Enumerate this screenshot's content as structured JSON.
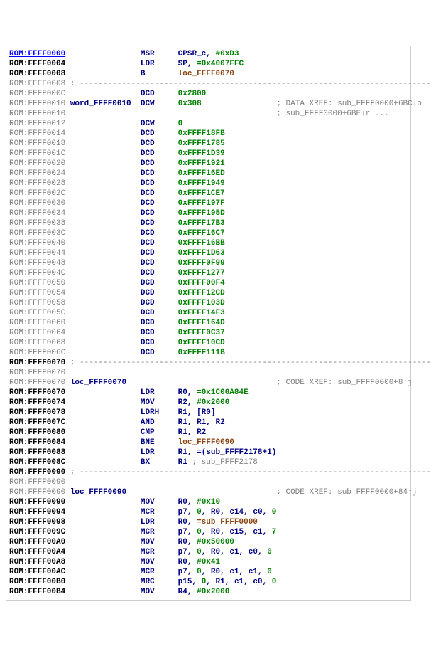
{
  "colors": {
    "background": "#ffffff",
    "addr_active": "#000000",
    "addr_dim": "#808080",
    "addr_link": "#0000ff",
    "keyword": "#000080",
    "number": "#008000",
    "label": "#8b4513",
    "comment": "#808080",
    "separator": "#808080"
  },
  "fontsize": 11,
  "font_family": "Courier New, monospace",
  "seg": "ROM",
  "separator_line": "; ---------------------------------------------------------------------------",
  "lines": [
    {
      "addr": "FFFF0000",
      "style": "blue",
      "mnem": "MSR",
      "ops": [
        {
          "t": "reg",
          "v": "CPSR_c"
        },
        {
          "t": "imm",
          "v": "#0xD3"
        }
      ]
    },
    {
      "addr": "FFFF0004",
      "style": "bold",
      "mnem": "LDR",
      "ops": [
        {
          "t": "reg",
          "v": "SP"
        },
        {
          "t": "imm",
          "v": "=0x4007FFC"
        }
      ]
    },
    {
      "addr": "FFFF0008",
      "style": "bold",
      "mnem": "B",
      "ops": [
        {
          "t": "lbl",
          "v": "loc_FFFF0070"
        }
      ]
    },
    {
      "addr": "FFFF0008",
      "style": "dim",
      "sep": true
    },
    {
      "addr": "FFFF000C",
      "style": "dim",
      "mnem": "DCD",
      "ops": [
        {
          "t": "imm",
          "v": "0x2800"
        }
      ]
    },
    {
      "addr": "FFFF0010",
      "style": "dim",
      "label": "word_FFFF0010",
      "mnem": "DCW",
      "ops": [
        {
          "t": "imm",
          "v": "0x308"
        }
      ],
      "xref": "; DATA XREF: sub_FFFF0000+6BC↓o"
    },
    {
      "addr": "FFFF0010",
      "style": "dim",
      "xref_only": "; sub_FFFF0000+6BE↓r ..."
    },
    {
      "addr": "FFFF0012",
      "style": "dim",
      "mnem": "DCW",
      "ops": [
        {
          "t": "imm",
          "v": "0"
        }
      ]
    },
    {
      "addr": "FFFF0014",
      "style": "dim",
      "mnem": "DCD",
      "ops": [
        {
          "t": "imm",
          "v": "0xFFFF18FB"
        }
      ]
    },
    {
      "addr": "FFFF0018",
      "style": "dim",
      "mnem": "DCD",
      "ops": [
        {
          "t": "imm",
          "v": "0xFFFF1785"
        }
      ]
    },
    {
      "addr": "FFFF001C",
      "style": "dim",
      "mnem": "DCD",
      "ops": [
        {
          "t": "imm",
          "v": "0xFFFF1D39"
        }
      ]
    },
    {
      "addr": "FFFF0020",
      "style": "dim",
      "mnem": "DCD",
      "ops": [
        {
          "t": "imm",
          "v": "0xFFFF1921"
        }
      ]
    },
    {
      "addr": "FFFF0024",
      "style": "dim",
      "mnem": "DCD",
      "ops": [
        {
          "t": "imm",
          "v": "0xFFFF16ED"
        }
      ]
    },
    {
      "addr": "FFFF0028",
      "style": "dim",
      "mnem": "DCD",
      "ops": [
        {
          "t": "imm",
          "v": "0xFFFF1949"
        }
      ]
    },
    {
      "addr": "FFFF002C",
      "style": "dim",
      "mnem": "DCD",
      "ops": [
        {
          "t": "imm",
          "v": "0xFFFF1CE7"
        }
      ]
    },
    {
      "addr": "FFFF0030",
      "style": "dim",
      "mnem": "DCD",
      "ops": [
        {
          "t": "imm",
          "v": "0xFFFF197F"
        }
      ]
    },
    {
      "addr": "FFFF0034",
      "style": "dim",
      "mnem": "DCD",
      "ops": [
        {
          "t": "imm",
          "v": "0xFFFF195D"
        }
      ]
    },
    {
      "addr": "FFFF0038",
      "style": "dim",
      "mnem": "DCD",
      "ops": [
        {
          "t": "imm",
          "v": "0xFFFF17B3"
        }
      ]
    },
    {
      "addr": "FFFF003C",
      "style": "dim",
      "mnem": "DCD",
      "ops": [
        {
          "t": "imm",
          "v": "0xFFFF16C7"
        }
      ]
    },
    {
      "addr": "FFFF0040",
      "style": "dim",
      "mnem": "DCD",
      "ops": [
        {
          "t": "imm",
          "v": "0xFFFF16BB"
        }
      ]
    },
    {
      "addr": "FFFF0044",
      "style": "dim",
      "mnem": "DCD",
      "ops": [
        {
          "t": "imm",
          "v": "0xFFFF1D63"
        }
      ]
    },
    {
      "addr": "FFFF0048",
      "style": "dim",
      "mnem": "DCD",
      "ops": [
        {
          "t": "imm",
          "v": "0xFFFF0F99"
        }
      ]
    },
    {
      "addr": "FFFF004C",
      "style": "dim",
      "mnem": "DCD",
      "ops": [
        {
          "t": "imm",
          "v": "0xFFFF1277"
        }
      ]
    },
    {
      "addr": "FFFF0050",
      "style": "dim",
      "mnem": "DCD",
      "ops": [
        {
          "t": "imm",
          "v": "0xFFFF00F4"
        }
      ]
    },
    {
      "addr": "FFFF0054",
      "style": "dim",
      "mnem": "DCD",
      "ops": [
        {
          "t": "imm",
          "v": "0xFFFF12CD"
        }
      ]
    },
    {
      "addr": "FFFF0058",
      "style": "dim",
      "mnem": "DCD",
      "ops": [
        {
          "t": "imm",
          "v": "0xFFFF103D"
        }
      ]
    },
    {
      "addr": "FFFF005C",
      "style": "dim",
      "mnem": "DCD",
      "ops": [
        {
          "t": "imm",
          "v": "0xFFFF14F3"
        }
      ]
    },
    {
      "addr": "FFFF0060",
      "style": "dim",
      "mnem": "DCD",
      "ops": [
        {
          "t": "imm",
          "v": "0xFFFF164D"
        }
      ]
    },
    {
      "addr": "FFFF0064",
      "style": "dim",
      "mnem": "DCD",
      "ops": [
        {
          "t": "imm",
          "v": "0xFFFF0C37"
        }
      ]
    },
    {
      "addr": "FFFF0068",
      "style": "dim",
      "mnem": "DCD",
      "ops": [
        {
          "t": "imm",
          "v": "0xFFFF10CD"
        }
      ]
    },
    {
      "addr": "FFFF006C",
      "style": "dim",
      "mnem": "DCD",
      "ops": [
        {
          "t": "imm",
          "v": "0xFFFF111B"
        }
      ]
    },
    {
      "addr": "FFFF0070",
      "style": "bold",
      "sep": true
    },
    {
      "addr": "FFFF0070",
      "style": "dim",
      "blank": true
    },
    {
      "addr": "FFFF0070",
      "style": "dim",
      "label": "loc_FFFF0070",
      "xref": "; CODE XREF: sub_FFFF0000+8↑j"
    },
    {
      "addr": "FFFF0070",
      "style": "bold",
      "mnem": "LDR",
      "ops": [
        {
          "t": "reg",
          "v": "R0"
        },
        {
          "t": "imm",
          "v": "=0x1C00A84E"
        }
      ]
    },
    {
      "addr": "FFFF0074",
      "style": "bold",
      "mnem": "MOV",
      "ops": [
        {
          "t": "reg",
          "v": "R2"
        },
        {
          "t": "imm",
          "v": "#0x2000"
        }
      ]
    },
    {
      "addr": "FFFF0078",
      "style": "bold",
      "mnem": "LDRH",
      "ops": [
        {
          "t": "reg",
          "v": "R1"
        },
        {
          "t": "mem",
          "v": "[R0]"
        }
      ]
    },
    {
      "addr": "FFFF007C",
      "style": "bold",
      "mnem": "AND",
      "ops": [
        {
          "t": "reg",
          "v": "R1"
        },
        {
          "t": "reg",
          "v": "R1"
        },
        {
          "t": "reg",
          "v": "R2"
        }
      ]
    },
    {
      "addr": "FFFF0080",
      "style": "bold",
      "mnem": "CMP",
      "ops": [
        {
          "t": "reg",
          "v": "R1"
        },
        {
          "t": "reg",
          "v": "R2"
        }
      ]
    },
    {
      "addr": "FFFF0084",
      "style": "bold",
      "mnem": "BNE",
      "ops": [
        {
          "t": "lbl",
          "v": "loc_FFFF0090"
        }
      ]
    },
    {
      "addr": "FFFF0088",
      "style": "bold",
      "mnem": "LDR",
      "ops": [
        {
          "t": "reg",
          "v": "R1"
        },
        {
          "t": "txt",
          "v": "=(sub_FFFF2178+1)"
        }
      ]
    },
    {
      "addr": "FFFF008C",
      "style": "bold",
      "mnem": "BX",
      "ops": [
        {
          "t": "reg",
          "v": "R1 "
        }
      ],
      "tail_cmt": "; sub_FFFF2178"
    },
    {
      "addr": "FFFF0090",
      "style": "bold",
      "sep": true
    },
    {
      "addr": "FFFF0090",
      "style": "dim",
      "blank": true
    },
    {
      "addr": "FFFF0090",
      "style": "dim",
      "label": "loc_FFFF0090",
      "xref": "; CODE XREF: sub_FFFF0000+84↑j"
    },
    {
      "addr": "FFFF0090",
      "style": "bold",
      "mnem": "MOV",
      "ops": [
        {
          "t": "reg",
          "v": "R0"
        },
        {
          "t": "imm",
          "v": "#0x10"
        }
      ]
    },
    {
      "addr": "FFFF0094",
      "style": "bold",
      "mnem": "MCR",
      "ops": [
        {
          "t": "reg",
          "v": "p7"
        },
        {
          "t": "imm",
          "v": "0"
        },
        {
          "t": "reg",
          "v": "R0"
        },
        {
          "t": "reg",
          "v": "c14"
        },
        {
          "t": "reg",
          "v": "c0"
        },
        {
          "t": "imm",
          "v": "0"
        }
      ]
    },
    {
      "addr": "FFFF0098",
      "style": "bold",
      "mnem": "LDR",
      "ops": [
        {
          "t": "reg",
          "v": "R0"
        },
        {
          "t": "lbl",
          "v": "=sub_FFFF0000"
        }
      ]
    },
    {
      "addr": "FFFF009C",
      "style": "bold",
      "mnem": "MCR",
      "ops": [
        {
          "t": "reg",
          "v": "p7"
        },
        {
          "t": "imm",
          "v": "0"
        },
        {
          "t": "reg",
          "v": "R0"
        },
        {
          "t": "reg",
          "v": "c15"
        },
        {
          "t": "reg",
          "v": "c1"
        },
        {
          "t": "imm",
          "v": "7"
        }
      ]
    },
    {
      "addr": "FFFF00A0",
      "style": "bold",
      "mnem": "MOV",
      "ops": [
        {
          "t": "reg",
          "v": "R0"
        },
        {
          "t": "imm",
          "v": "#0x50000"
        }
      ]
    },
    {
      "addr": "FFFF00A4",
      "style": "bold",
      "mnem": "MCR",
      "ops": [
        {
          "t": "reg",
          "v": "p7"
        },
        {
          "t": "imm",
          "v": "0"
        },
        {
          "t": "reg",
          "v": "R0"
        },
        {
          "t": "reg",
          "v": "c1"
        },
        {
          "t": "reg",
          "v": "c0"
        },
        {
          "t": "imm",
          "v": "0"
        }
      ]
    },
    {
      "addr": "FFFF00A8",
      "style": "bold",
      "mnem": "MOV",
      "ops": [
        {
          "t": "reg",
          "v": "R0"
        },
        {
          "t": "imm",
          "v": "#0x41"
        }
      ]
    },
    {
      "addr": "FFFF00AC",
      "style": "bold",
      "mnem": "MCR",
      "ops": [
        {
          "t": "reg",
          "v": "p7"
        },
        {
          "t": "imm",
          "v": "0"
        },
        {
          "t": "reg",
          "v": "R0"
        },
        {
          "t": "reg",
          "v": "c1"
        },
        {
          "t": "reg",
          "v": "c1"
        },
        {
          "t": "imm",
          "v": "0"
        }
      ]
    },
    {
      "addr": "FFFF00B0",
      "style": "bold",
      "mnem": "MRC",
      "ops": [
        {
          "t": "reg",
          "v": "p15"
        },
        {
          "t": "imm",
          "v": "0"
        },
        {
          "t": "reg",
          "v": "R1"
        },
        {
          "t": "reg",
          "v": "c1"
        },
        {
          "t": "reg",
          "v": "c0"
        },
        {
          "t": "imm",
          "v": "0"
        }
      ]
    },
    {
      "addr": "FFFF00B4",
      "style": "bold",
      "mnem": "MOV",
      "ops": [
        {
          "t": "reg",
          "v": "R4"
        },
        {
          "t": "imm",
          "v": "#0x2000"
        }
      ]
    }
  ],
  "layout": {
    "col_label": 14,
    "col_mnem": 28,
    "col_ops": 36,
    "col_xref": 57
  }
}
